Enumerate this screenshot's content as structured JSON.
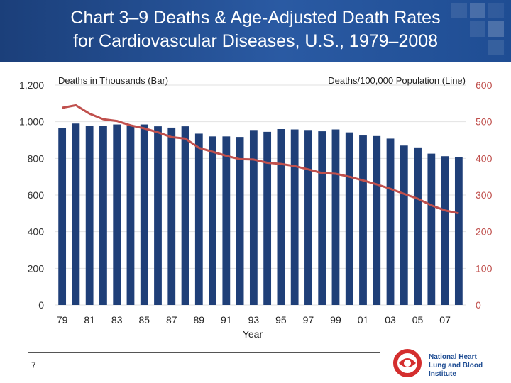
{
  "header": {
    "title_line1": "Chart 3–9 Deaths & Age-Adjusted Death Rates",
    "title_line2": "for Cardiovascular Diseases, U.S., 1979–2008"
  },
  "colors": {
    "bar": "#1f3f78",
    "line": "#c0504d",
    "left_axis_text": "#333333",
    "right_axis_text": "#c0504d",
    "header_bg": "#1f4d93"
  },
  "chart_data": {
    "type": "bar",
    "title": "",
    "xlabel": "Year",
    "left_axis_label": "Deaths in Thousands (Bar)",
    "right_axis_label": "Deaths/100,000 Population (Line)",
    "ylim_left": [
      0,
      1200
    ],
    "ylim_right": [
      0,
      600
    ],
    "yticks_left": [
      "0",
      "200",
      "400",
      "600",
      "800",
      "1,000",
      "1,200"
    ],
    "yticks_right": [
      "0",
      "100",
      "200",
      "300",
      "400",
      "500",
      "600"
    ],
    "xtick_labels": [
      "79",
      "81",
      "83",
      "85",
      "87",
      "89",
      "91",
      "93",
      "95",
      "97",
      "99",
      "01",
      "03",
      "05",
      "07"
    ],
    "categories": [
      "1979",
      "1980",
      "1981",
      "1982",
      "1983",
      "1984",
      "1985",
      "1986",
      "1987",
      "1988",
      "1989",
      "1990",
      "1991",
      "1992",
      "1993",
      "1994",
      "1995",
      "1996",
      "1997",
      "1998",
      "1999",
      "2000",
      "2001",
      "2002",
      "2003",
      "2004",
      "2005",
      "2006",
      "2007",
      "2008"
    ],
    "series": [
      {
        "type": "bar",
        "axis": "left",
        "values": [
          965,
          990,
          978,
          976,
          985,
          978,
          985,
          975,
          968,
          975,
          935,
          920,
          920,
          917,
          955,
          945,
          960,
          958,
          955,
          948,
          958,
          942,
          925,
          922,
          908,
          870,
          860,
          826,
          812,
          808
        ]
      },
      {
        "type": "line",
        "axis": "right",
        "values": [
          538,
          545,
          522,
          507,
          502,
          490,
          482,
          471,
          458,
          454,
          429,
          418,
          407,
          398,
          397,
          388,
          385,
          379,
          370,
          360,
          358,
          350,
          340,
          329,
          317,
          303,
          290,
          272,
          258,
          250
        ]
      }
    ]
  },
  "footer": {
    "page_number": "7",
    "logo_line1": "National Heart",
    "logo_line2": "Lung and Blood Institute"
  }
}
